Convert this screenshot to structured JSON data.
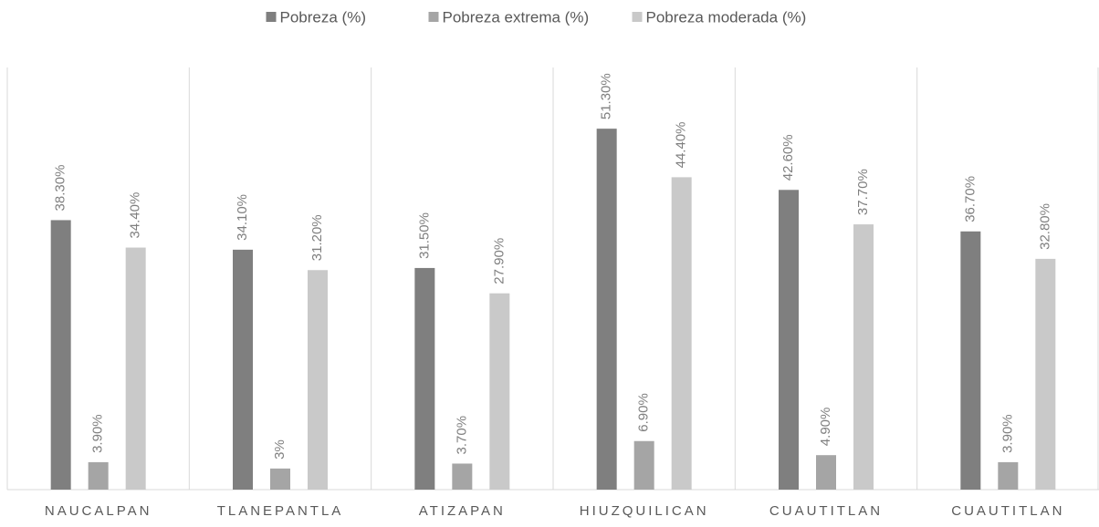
{
  "chart_data": {
    "type": "bar",
    "categories": [
      "NAUCALPAN",
      "TLANEPANTLA",
      "ATIZAPAN",
      "HIUZQUILICAN",
      "CUAUTITLAN",
      "CUAUTITLAN"
    ],
    "series": [
      {
        "name": "Pobreza (%)",
        "color": "#7f7f7f",
        "values": [
          38.3,
          34.1,
          31.5,
          51.3,
          42.6,
          36.7
        ],
        "value_labels": [
          "38.30%",
          "34.10%",
          "31.50%",
          "51.30%",
          "42.60%",
          "36.70%"
        ]
      },
      {
        "name": "Pobreza extrema (%)",
        "color": "#a5a5a5",
        "values": [
          3.9,
          3,
          3.7,
          6.9,
          4.9,
          3.9
        ],
        "value_labels": [
          "3.90%",
          "3%",
          "3.70%",
          "6.90%",
          "4.90%",
          "3.90%"
        ]
      },
      {
        "name": "Pobreza moderada (%)",
        "color": "#c9c9c9",
        "values": [
          34.4,
          31.2,
          27.9,
          44.4,
          37.7,
          32.8
        ],
        "value_labels": [
          "34.40%",
          "31.20%",
          "27.90%",
          "44.40%",
          "37.70%",
          "32.80%"
        ]
      }
    ],
    "ylim": [
      0,
      60
    ],
    "legend": "top"
  }
}
